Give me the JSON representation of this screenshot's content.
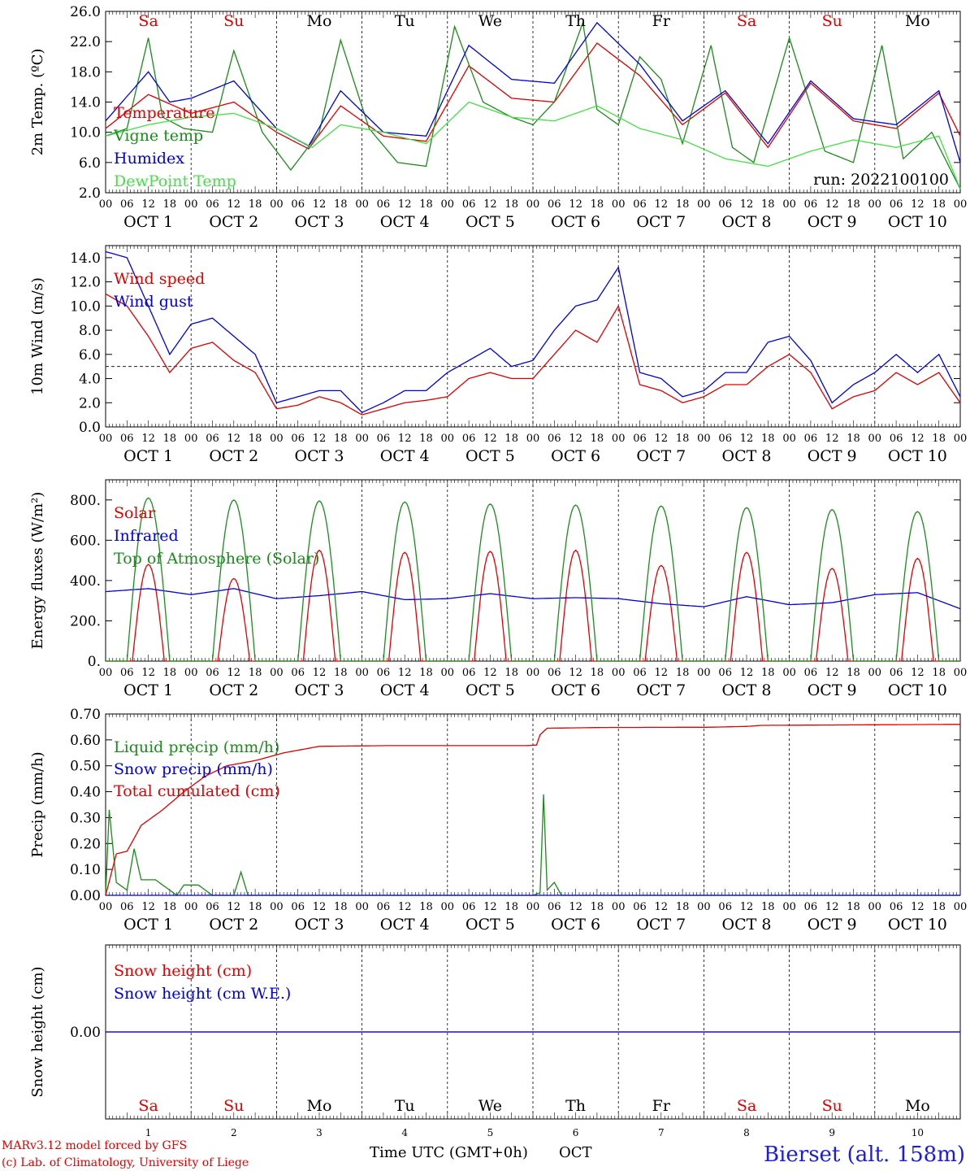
{
  "days": [
    "1",
    "2",
    "3",
    "4",
    "5",
    "6",
    "7",
    "8",
    "9",
    "10"
  ],
  "day_names": [
    {
      "label": "Sa",
      "color": "#e00000"
    },
    {
      "label": "Su",
      "color": "#e00000"
    },
    {
      "label": "Mo",
      "color": "#000000"
    },
    {
      "label": "Tu",
      "color": "#000000"
    },
    {
      "label": "We",
      "color": "#000000"
    },
    {
      "label": "Th",
      "color": "#000000"
    },
    {
      "label": "Fr",
      "color": "#000000"
    },
    {
      "label": "Sa",
      "color": "#e00000"
    },
    {
      "label": "Su",
      "color": "#e00000"
    },
    {
      "label": "Mo",
      "color": "#000000"
    }
  ],
  "hour_ticks": [
    "00",
    "06",
    "12",
    "18"
  ],
  "month": "OCT",
  "run_label": "run: 2022100100",
  "footer": {
    "credit1": "MARv3.12 model forced by GFS",
    "credit2": "(c) Lab. of Climatology, University of Liege",
    "xlabel": "Time UTC (GMT+0h)",
    "xlabel_month": "OCT",
    "station": "Bierset (alt. 158m)"
  },
  "chart_data": [
    {
      "type": "line",
      "ylabel": "2m Temp. (ºC)",
      "ylim": [
        2.0,
        26.0
      ],
      "yticks": [
        "2.0",
        "6.0",
        "10.0",
        "14.0",
        "18.0",
        "22.0",
        "26.0"
      ],
      "x_unit": "hours since OCT 1 00 UTC",
      "series": [
        {
          "name": "Temperature",
          "color": "#e00000",
          "x": [
            0,
            12,
            24,
            36,
            48,
            57,
            66,
            78,
            90,
            102,
            114,
            126,
            138,
            150,
            162,
            174,
            186,
            198,
            210,
            222,
            234,
            240
          ],
          "y": [
            10.5,
            15.0,
            12.5,
            14.0,
            10.0,
            7.8,
            13.5,
            9.5,
            8.8,
            18.8,
            14.5,
            14.0,
            21.8,
            17.5,
            11.0,
            15.2,
            8.0,
            16.5,
            11.5,
            10.5,
            15.2,
            9.5
          ]
        },
        {
          "name": "Vigne temp",
          "color": "#1a8c1a",
          "x": [
            0,
            6,
            12,
            16,
            22,
            30,
            36,
            44,
            52,
            60,
            66,
            74,
            82,
            90,
            98,
            106,
            114,
            120,
            126,
            134,
            138,
            144,
            150,
            156,
            162,
            170,
            176,
            182,
            192,
            202,
            210,
            218,
            224,
            232,
            240
          ],
          "y": [
            9.5,
            10.5,
            22.5,
            12.0,
            10.5,
            10.0,
            20.8,
            10.0,
            5.0,
            10.0,
            22.2,
            10.5,
            6.0,
            5.5,
            24.0,
            14.0,
            12.0,
            11.0,
            14.0,
            24.5,
            13.0,
            11.0,
            20.0,
            17.0,
            8.5,
            21.5,
            8.0,
            6.0,
            22.5,
            7.5,
            6.0,
            21.5,
            6.5,
            10.0,
            2.5
          ]
        },
        {
          "name": "Humidex",
          "color": "#0000dd",
          "x": [
            0,
            12,
            18,
            24,
            36,
            48,
            57,
            66,
            78,
            90,
            102,
            114,
            126,
            138,
            150,
            162,
            174,
            186,
            198,
            210,
            222,
            234,
            240
          ],
          "y": [
            11.5,
            18.0,
            14.0,
            14.5,
            16.8,
            10.5,
            8.2,
            15.5,
            10.0,
            9.5,
            21.5,
            17.0,
            16.5,
            24.5,
            19.0,
            11.5,
            15.5,
            8.5,
            16.8,
            11.8,
            11.0,
            15.5,
            6.0
          ]
        },
        {
          "name": "DewPoint Temp",
          "color": "#44e044",
          "x": [
            0,
            12,
            24,
            36,
            48,
            58,
            66,
            78,
            90,
            102,
            114,
            126,
            138,
            150,
            162,
            174,
            186,
            198,
            210,
            222,
            234,
            240
          ],
          "y": [
            9.5,
            11.0,
            12.0,
            12.5,
            10.5,
            8.0,
            11.0,
            10.0,
            8.5,
            14.0,
            12.0,
            11.5,
            13.5,
            10.5,
            9.0,
            6.5,
            5.5,
            7.5,
            9.0,
            8.0,
            9.5,
            2.5
          ]
        }
      ]
    },
    {
      "type": "line",
      "ylabel": "10m Wind (m/s)",
      "ylim": [
        0.0,
        15.0
      ],
      "yticks": [
        "0.0",
        "2.0",
        "4.0",
        "6.0",
        "8.0",
        "10.0",
        "12.0",
        "14.0"
      ],
      "reference_line": 5.0,
      "series": [
        {
          "name": "Wind speed",
          "color": "#e00000",
          "x": [
            0,
            6,
            12,
            18,
            24,
            30,
            36,
            42,
            48,
            54,
            60,
            66,
            72,
            78,
            84,
            90,
            96,
            102,
            108,
            114,
            120,
            126,
            132,
            138,
            144,
            150,
            156,
            162,
            168,
            174,
            180,
            186,
            192,
            198,
            204,
            210,
            216,
            222,
            228,
            234,
            240
          ],
          "y": [
            11.0,
            10.0,
            7.5,
            4.5,
            6.5,
            7.0,
            5.5,
            4.5,
            1.5,
            1.8,
            2.5,
            2.0,
            1.0,
            1.5,
            2.0,
            2.2,
            2.5,
            4.0,
            4.5,
            4.0,
            4.0,
            6.0,
            8.0,
            7.0,
            10.0,
            3.5,
            3.0,
            2.0,
            2.5,
            3.5,
            3.5,
            5.0,
            6.0,
            4.5,
            1.5,
            2.5,
            3.0,
            4.5,
            3.5,
            4.5,
            2.0
          ]
        },
        {
          "name": "Wind gust",
          "color": "#0000dd",
          "x": [
            0,
            6,
            12,
            18,
            24,
            30,
            36,
            42,
            48,
            54,
            60,
            66,
            72,
            78,
            84,
            90,
            96,
            102,
            108,
            114,
            120,
            126,
            132,
            138,
            144,
            150,
            156,
            162,
            168,
            174,
            180,
            186,
            192,
            198,
            204,
            210,
            216,
            222,
            228,
            234,
            240
          ],
          "y": [
            14.5,
            14.0,
            10.0,
            6.0,
            8.5,
            9.0,
            7.5,
            6.0,
            2.0,
            2.5,
            3.0,
            3.0,
            1.2,
            2.0,
            3.0,
            3.0,
            4.5,
            5.5,
            6.5,
            5.0,
            5.5,
            8.0,
            10.0,
            10.5,
            13.2,
            4.5,
            4.0,
            2.5,
            3.0,
            4.5,
            4.5,
            7.0,
            7.5,
            5.5,
            2.0,
            3.5,
            4.5,
            6.0,
            4.5,
            6.0,
            2.5
          ]
        }
      ]
    },
    {
      "type": "line",
      "ylabel": "Energy fluxes (W/m²)",
      "ylim": [
        0,
        900
      ],
      "yticks": [
        "0.",
        "200.",
        "400.",
        "600.",
        "800."
      ],
      "series": [
        {
          "name": "Solar",
          "color": "#e00000",
          "peaks": [
            480,
            410,
            550,
            540,
            545,
            550,
            475,
            540,
            460,
            510
          ],
          "pattern": "daily"
        },
        {
          "name": "Infrared",
          "color": "#0000dd",
          "x": [
            0,
            12,
            24,
            36,
            48,
            60,
            72,
            84,
            96,
            108,
            120,
            132,
            144,
            156,
            168,
            180,
            192,
            204,
            216,
            228,
            240
          ],
          "y": [
            345,
            360,
            330,
            360,
            310,
            325,
            345,
            305,
            310,
            335,
            310,
            315,
            310,
            285,
            270,
            320,
            280,
            290,
            330,
            340,
            260
          ]
        },
        {
          "name": "Top of Atmosphere (Solar)",
          "color": "#1a8c1a",
          "peaks": [
            810,
            800,
            795,
            790,
            780,
            775,
            770,
            762,
            752,
            742
          ],
          "pattern": "daily"
        }
      ]
    },
    {
      "type": "line",
      "ylabel": "Precip (mm/h)",
      "ylim": [
        0.0,
        0.7
      ],
      "yticks": [
        "0.00",
        "0.10",
        "0.20",
        "0.30",
        "0.40",
        "0.50",
        "0.60",
        "0.70"
      ],
      "series": [
        {
          "name": "Liquid precip (mm/h)",
          "color": "#1a8c1a",
          "x": [
            0,
            1,
            3,
            6,
            8,
            10,
            14,
            20,
            22,
            26,
            30,
            36,
            38,
            40,
            120,
            122,
            123,
            124,
            126,
            128,
            240
          ],
          "y": [
            0.0,
            0.33,
            0.05,
            0.02,
            0.18,
            0.06,
            0.06,
            0.0,
            0.04,
            0.04,
            0.0,
            0.0,
            0.09,
            0.0,
            0.0,
            0.01,
            0.39,
            0.02,
            0.05,
            0.0,
            0.0
          ]
        },
        {
          "name": "Snow precip (mm/h)",
          "color": "#0000dd",
          "x": [
            0,
            240
          ],
          "y": [
            0.0,
            0.0
          ]
        },
        {
          "name": "Total cumulated (cm)",
          "color": "#e00000",
          "x": [
            0,
            3,
            6,
            10,
            16,
            22,
            28,
            34,
            42,
            50,
            60,
            80,
            96,
            108,
            118,
            121,
            122,
            124,
            140,
            170,
            180,
            184,
            240
          ],
          "y": [
            0.0,
            0.16,
            0.17,
            0.27,
            0.33,
            0.4,
            0.46,
            0.5,
            0.52,
            0.55,
            0.575,
            0.578,
            0.578,
            0.578,
            0.578,
            0.58,
            0.62,
            0.645,
            0.648,
            0.649,
            0.652,
            0.656,
            0.66
          ]
        }
      ]
    },
    {
      "type": "line",
      "ylabel": "Snow height (cm)",
      "yticks": [
        "0.00"
      ],
      "series": [
        {
          "name": "Snow height (cm)",
          "color": "#e00000",
          "x": [
            0,
            240
          ],
          "y": [
            0.0,
            0.0
          ]
        },
        {
          "name": "Snow height (cm W.E.)",
          "color": "#0000dd",
          "x": [
            0,
            240
          ],
          "y": [
            0.0,
            0.0
          ]
        }
      ]
    }
  ]
}
